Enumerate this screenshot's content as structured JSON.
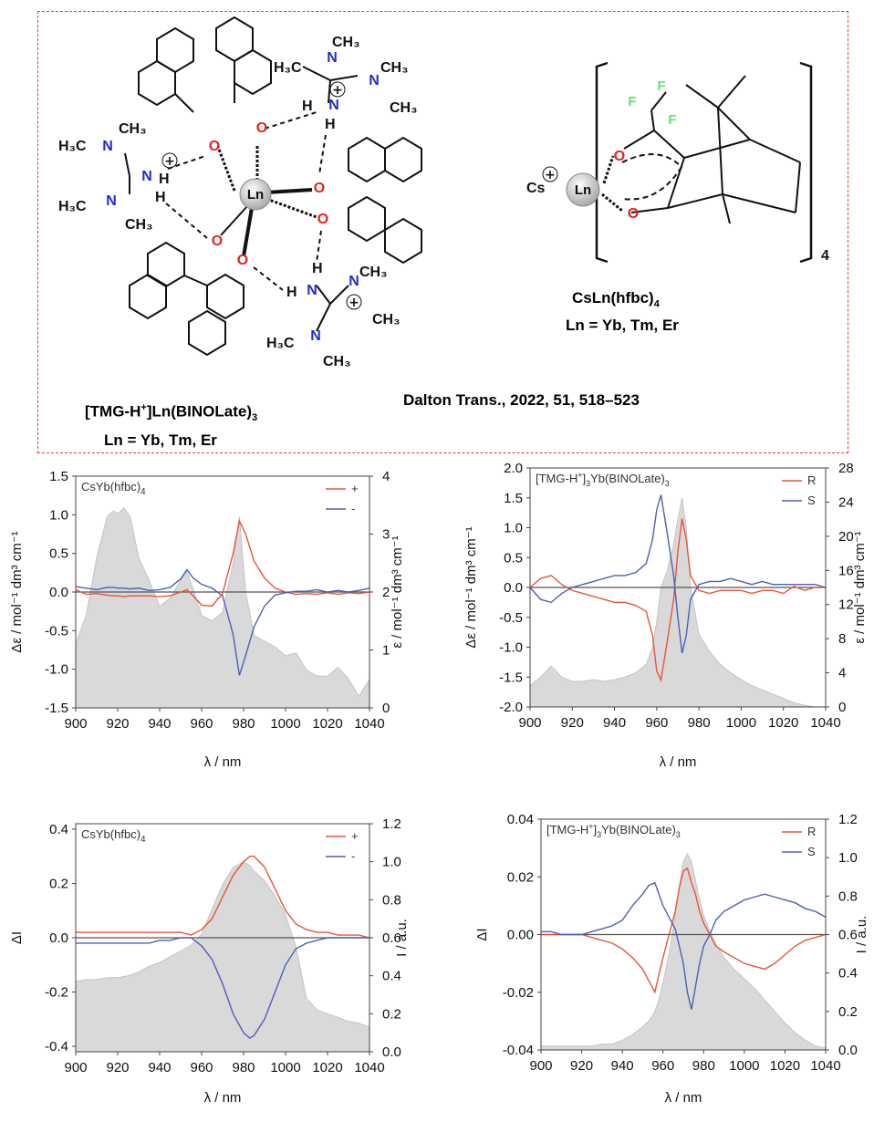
{
  "scheme": {
    "left_compound": {
      "name_prefix": "[TMG-H",
      "name_sup": "+",
      "name_mid": "]Ln(BINOLate)",
      "name_sub": "3",
      "ln_line": "Ln = Yb, Tm, Er",
      "center_atom": "Ln"
    },
    "right_compound": {
      "name": "CsLn(hfbc)",
      "name_sub": "4",
      "ln_line": "Ln = Yb, Tm, Er",
      "cation": "Cs",
      "center_atom": "Ln",
      "bracket_sub": "4"
    },
    "reference": "Dalton Trans., 2022, 51, 518–523",
    "colors": {
      "oxygen": "#e8201a",
      "nitrogen": "#1f2bd6",
      "fluorine": "#66e070",
      "border": "#e53935"
    }
  },
  "chart_data": [
    {
      "type": "line",
      "panel": "CD-hfbc",
      "title": "CsYb(hfbc)",
      "title_sub": "4",
      "x_label": "λ / nm",
      "y_label": "Δε / mol⁻¹ dm³ cm⁻¹",
      "y2_label": "ε / mol⁻¹ dm³ cm⁻¹",
      "xlim": [
        900,
        1040
      ],
      "ylim": [
        -1.5,
        1.5
      ],
      "y2lim": [
        0,
        4
      ],
      "x_ticks": [
        900,
        920,
        940,
        960,
        980,
        1000,
        1020,
        1040
      ],
      "y_ticks": [
        "1.5",
        "1.0",
        "0.5",
        "0.0",
        "-0.5",
        "-1.0",
        "-1.5"
      ],
      "y_tick_values": [
        1.5,
        1.0,
        0.5,
        0.0,
        -0.5,
        -1.0,
        -1.5
      ],
      "y2_ticks": [
        "4",
        "3",
        "2",
        "1",
        "0"
      ],
      "y2_tick_values": [
        4,
        3,
        2,
        1,
        0
      ],
      "x": [
        900,
        905,
        910,
        915,
        918,
        920,
        923,
        926,
        930,
        935,
        940,
        945,
        950,
        953,
        956,
        960,
        965,
        970,
        975,
        978,
        981,
        985,
        990,
        995,
        1000,
        1005,
        1010,
        1015,
        1020,
        1025,
        1030,
        1035,
        1040
      ],
      "series": [
        {
          "name": "+",
          "color": "#e8553a",
          "values": [
            0.03,
            -0.03,
            -0.02,
            -0.04,
            -0.05,
            -0.05,
            -0.06,
            -0.05,
            -0.05,
            -0.05,
            -0.06,
            -0.05,
            0.0,
            0.03,
            -0.05,
            -0.17,
            -0.18,
            -0.02,
            0.5,
            0.92,
            0.75,
            0.4,
            0.18,
            0.05,
            0.0,
            -0.03,
            -0.02,
            -0.03,
            -0.01,
            -0.03,
            -0.01,
            -0.02,
            0.0
          ]
        },
        {
          "name": "-",
          "color": "#4f5fb5",
          "values": [
            0.07,
            0.05,
            0.03,
            0.06,
            0.06,
            0.05,
            0.05,
            0.04,
            0.05,
            0.02,
            0.03,
            0.06,
            0.17,
            0.29,
            0.18,
            0.1,
            0.05,
            -0.05,
            -0.55,
            -1.08,
            -0.82,
            -0.45,
            -0.18,
            -0.04,
            -0.01,
            0.01,
            0.01,
            0.03,
            0.0,
            0.02,
            0.0,
            0.02,
            0.05
          ]
        }
      ],
      "abs": {
        "name": "ε",
        "axis": "y2",
        "color": "#d9d9d9",
        "values": [
          1.1,
          1.6,
          2.6,
          3.3,
          3.4,
          3.35,
          3.45,
          3.3,
          2.6,
          2.2,
          1.75,
          1.9,
          2.2,
          2.35,
          2.05,
          1.6,
          1.5,
          1.65,
          2.5,
          3.3,
          2.0,
          1.25,
          1.15,
          1.05,
          0.9,
          0.95,
          0.65,
          0.55,
          0.55,
          0.7,
          0.5,
          0.2,
          0.5
        ]
      }
    },
    {
      "type": "line",
      "panel": "CD-binolate",
      "title_prefix": "[TMG-H",
      "title_sup": "+",
      "title_mid": "]",
      "title_sub": "3",
      "title_suffix": "Yb(BINOLate)",
      "title_sub2": "3",
      "x_label": "λ / nm",
      "y_label": "Δε / mol⁻¹ dm³ cm⁻¹",
      "y2_label": "ε / mol⁻¹ dm³ cm⁻¹",
      "xlim": [
        900,
        1040
      ],
      "ylim": [
        -2.0,
        2.0
      ],
      "y2lim": [
        0,
        28
      ],
      "x_ticks": [
        900,
        920,
        940,
        960,
        980,
        1000,
        1020,
        1040
      ],
      "y_ticks": [
        "2.0",
        "1.5",
        "1.0",
        "0.5",
        "0.0",
        "-0.5",
        "-1.0",
        "-1.5",
        "-2.0"
      ],
      "y_tick_values": [
        2.0,
        1.5,
        1.0,
        0.5,
        0.0,
        -0.5,
        -1.0,
        -1.5,
        -2.0
      ],
      "y2_ticks": [
        "28",
        "24",
        "20",
        "16",
        "12",
        "8",
        "4",
        "0"
      ],
      "y2_tick_values": [
        28,
        24,
        20,
        16,
        12,
        8,
        4,
        0
      ],
      "x": [
        900,
        905,
        910,
        915,
        920,
        925,
        930,
        935,
        940,
        945,
        950,
        955,
        958,
        960,
        962,
        965,
        968,
        970,
        972,
        974,
        976,
        980,
        985,
        990,
        995,
        1000,
        1005,
        1010,
        1015,
        1020,
        1025,
        1030,
        1035,
        1040
      ],
      "series": [
        {
          "name": "R",
          "color": "#e8553a",
          "values": [
            0.0,
            0.15,
            0.2,
            0.05,
            -0.05,
            -0.1,
            -0.15,
            -0.2,
            -0.25,
            -0.25,
            -0.3,
            -0.4,
            -0.8,
            -1.4,
            -1.55,
            -0.9,
            -0.2,
            0.6,
            1.15,
            0.8,
            0.2,
            -0.05,
            -0.1,
            -0.05,
            -0.05,
            -0.05,
            -0.1,
            -0.05,
            -0.05,
            -0.1,
            0.02,
            -0.05,
            0.0,
            0.0
          ]
        },
        {
          "name": "S",
          "color": "#4f5fb5",
          "values": [
            0.0,
            -0.2,
            -0.25,
            -0.1,
            0.0,
            0.05,
            0.1,
            0.15,
            0.2,
            0.2,
            0.25,
            0.4,
            0.8,
            1.3,
            1.55,
            0.9,
            0.2,
            -0.5,
            -1.1,
            -0.8,
            -0.2,
            0.05,
            0.1,
            0.1,
            0.15,
            0.1,
            0.05,
            0.1,
            0.05,
            0.05,
            0.05,
            0.05,
            0.05,
            0.0
          ]
        }
      ],
      "abs": {
        "name": "ε",
        "axis": "y2",
        "color": "#d9d9d9",
        "values": [
          2.5,
          3.5,
          4.8,
          3.5,
          3.0,
          3.0,
          3.2,
          3.0,
          3.2,
          3.5,
          4.0,
          5.0,
          7.0,
          10.0,
          14.0,
          16.0,
          19.0,
          22.0,
          24.5,
          21.0,
          14.0,
          8.5,
          6.5,
          5.0,
          4.0,
          3.2,
          2.5,
          2.0,
          1.5,
          1.0,
          0.5,
          0.2,
          0.0,
          0.0
        ]
      }
    },
    {
      "type": "line",
      "panel": "CPL-hfbc",
      "title": "CsYb(hfbc)",
      "title_sub": "4",
      "x_label": "λ / nm",
      "y_label": "ΔI",
      "y2_label": "I / a.u.",
      "xlim": [
        900,
        1040
      ],
      "ylim": [
        -0.42,
        0.42
      ],
      "y2lim": [
        0.0,
        1.2
      ],
      "x_ticks": [
        900,
        920,
        940,
        960,
        980,
        1000,
        1020,
        1040
      ],
      "y_ticks": [
        "0.4",
        "0.2",
        "0.0",
        "-0.2",
        "-0.4"
      ],
      "y_tick_values": [
        0.4,
        0.2,
        0.0,
        -0.2,
        -0.4
      ],
      "y2_ticks": [
        "1.2",
        "1.0",
        "0.8",
        "0.6",
        "0.4",
        "0.2",
        "0.0"
      ],
      "y2_tick_values": [
        1.2,
        1.0,
        0.8,
        0.6,
        0.4,
        0.2,
        0.0
      ],
      "x": [
        900,
        905,
        910,
        915,
        920,
        925,
        930,
        935,
        940,
        945,
        950,
        955,
        960,
        965,
        970,
        975,
        980,
        983,
        985,
        990,
        995,
        1000,
        1005,
        1010,
        1015,
        1020,
        1025,
        1030,
        1035,
        1040
      ],
      "series": [
        {
          "name": "+",
          "color": "#e8553a",
          "values": [
            0.02,
            0.02,
            0.02,
            0.02,
            0.02,
            0.02,
            0.02,
            0.02,
            0.02,
            0.02,
            0.02,
            0.01,
            0.03,
            0.07,
            0.15,
            0.23,
            0.28,
            0.3,
            0.3,
            0.26,
            0.18,
            0.1,
            0.05,
            0.03,
            0.02,
            0.02,
            0.01,
            0.01,
            0.01,
            0.0
          ]
        },
        {
          "name": "-",
          "color": "#4f5fb5",
          "values": [
            -0.02,
            -0.02,
            -0.02,
            -0.02,
            -0.02,
            -0.02,
            -0.02,
            -0.02,
            -0.01,
            -0.01,
            0.0,
            0.0,
            -0.03,
            -0.08,
            -0.17,
            -0.28,
            -0.35,
            -0.37,
            -0.36,
            -0.3,
            -0.2,
            -0.1,
            -0.04,
            -0.02,
            -0.01,
            0.0,
            0.0,
            0.0,
            0.0,
            0.0
          ]
        }
      ],
      "abs": {
        "name": "I",
        "axis": "y2",
        "color": "#d9d9d9",
        "values": [
          0.37,
          0.38,
          0.38,
          0.39,
          0.39,
          0.4,
          0.42,
          0.45,
          0.47,
          0.5,
          0.53,
          0.56,
          0.62,
          0.75,
          0.88,
          0.97,
          1.0,
          0.98,
          0.95,
          0.9,
          0.82,
          0.72,
          0.55,
          0.28,
          0.22,
          0.2,
          0.18,
          0.16,
          0.15,
          0.13
        ]
      }
    },
    {
      "type": "line",
      "panel": "CPL-binolate",
      "title_prefix": "[TMG-H",
      "title_sup": "+",
      "title_mid": "]",
      "title_sub": "3",
      "title_suffix": "Yb(BINOLate)",
      "title_sub2": "3",
      "x_label": "λ / nm",
      "y_label": "ΔI",
      "y2_label": "I / a.u.",
      "xlim": [
        900,
        1040
      ],
      "ylim": [
        -0.04,
        0.04
      ],
      "y2lim": [
        0.0,
        1.2
      ],
      "x_ticks": [
        900,
        920,
        940,
        960,
        980,
        1000,
        1020,
        1040
      ],
      "y_ticks": [
        "0.04",
        "0.02",
        "0.00",
        "-0.02",
        "-0.04"
      ],
      "y_tick_values": [
        0.04,
        0.02,
        0.0,
        -0.02,
        -0.04
      ],
      "y2_ticks": [
        "1.2",
        "1.0",
        "0.8",
        "0.6",
        "0.4",
        "0.2",
        "0.0"
      ],
      "y2_tick_values": [
        1.2,
        1.0,
        0.8,
        0.6,
        0.4,
        0.2,
        0.0
      ],
      "x": [
        900,
        905,
        910,
        915,
        920,
        925,
        930,
        935,
        940,
        945,
        950,
        953,
        956,
        958,
        960,
        963,
        966,
        968,
        970,
        972,
        974,
        976,
        978,
        980,
        983,
        986,
        990,
        995,
        1000,
        1005,
        1010,
        1015,
        1020,
        1025,
        1030,
        1035,
        1040
      ],
      "series": [
        {
          "name": "R",
          "color": "#e8553a",
          "values": [
            0.0,
            0.0,
            0.0,
            0.0,
            0.0,
            -0.001,
            -0.002,
            -0.003,
            -0.005,
            -0.008,
            -0.012,
            -0.016,
            -0.02,
            -0.014,
            -0.008,
            0.0,
            0.008,
            0.016,
            0.022,
            0.023,
            0.018,
            0.014,
            0.008,
            0.004,
            0.0,
            -0.004,
            -0.006,
            -0.008,
            -0.01,
            -0.011,
            -0.012,
            -0.01,
            -0.007,
            -0.004,
            -0.002,
            -0.001,
            0.0
          ]
        },
        {
          "name": "S",
          "color": "#4f5fb5",
          "values": [
            0.001,
            0.001,
            0.0,
            0.0,
            0.0,
            0.001,
            0.002,
            0.003,
            0.005,
            0.01,
            0.014,
            0.017,
            0.018,
            0.014,
            0.01,
            0.006,
            0.002,
            -0.004,
            -0.01,
            -0.02,
            -0.026,
            -0.018,
            -0.01,
            -0.004,
            0.0,
            0.005,
            0.008,
            0.01,
            0.012,
            0.013,
            0.014,
            0.013,
            0.012,
            0.011,
            0.009,
            0.008,
            0.006
          ]
        }
      ],
      "abs": {
        "name": "I",
        "axis": "y2",
        "color": "#d9d9d9",
        "values": [
          0.02,
          0.02,
          0.02,
          0.02,
          0.02,
          0.02,
          0.03,
          0.03,
          0.05,
          0.08,
          0.12,
          0.15,
          0.2,
          0.26,
          0.35,
          0.5,
          0.7,
          0.85,
          0.98,
          1.02,
          0.98,
          0.88,
          0.78,
          0.7,
          0.62,
          0.55,
          0.48,
          0.42,
          0.37,
          0.32,
          0.26,
          0.2,
          0.14,
          0.09,
          0.05,
          0.02,
          0.01
        ]
      }
    }
  ]
}
